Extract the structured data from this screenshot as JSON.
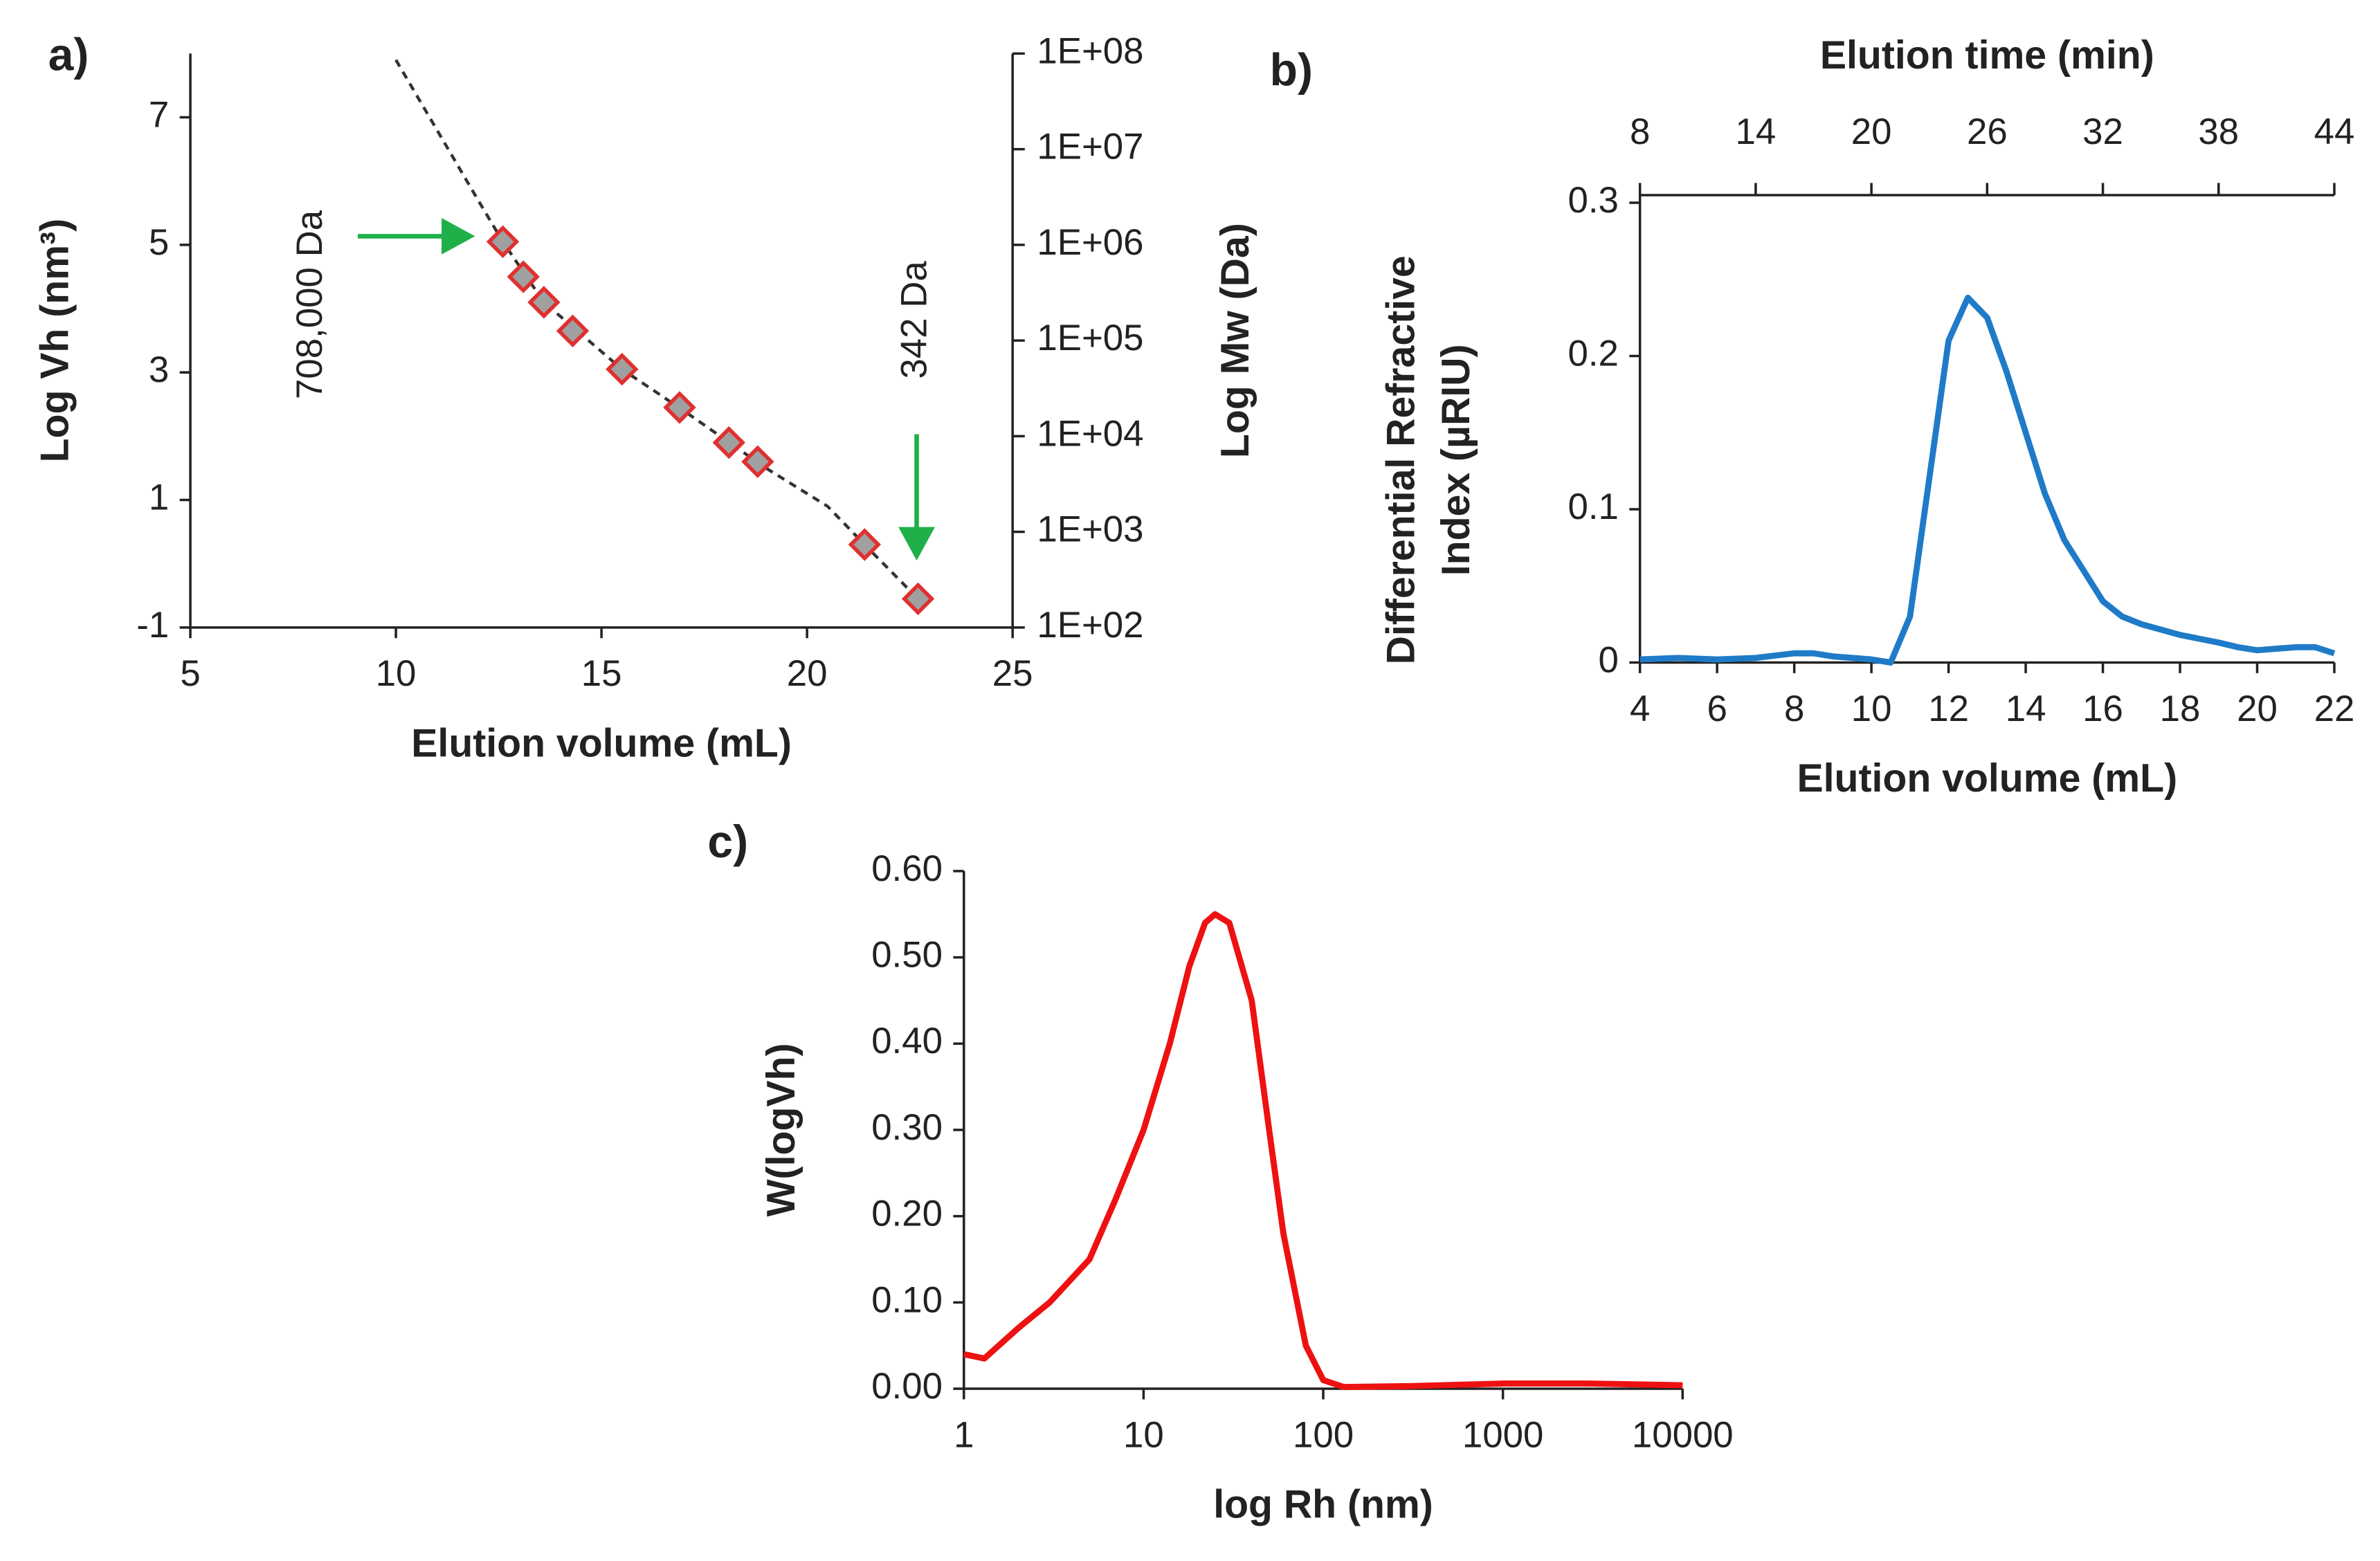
{
  "chart_data": [
    {
      "type": "scatter",
      "panel_label": "a)",
      "xlabel": "Elution volume (mL)",
      "ylabel": "Log Vh (nm³)",
      "y2label": "Log Mw (Da)",
      "xlim": [
        5,
        25
      ],
      "xticks": [
        5,
        10,
        15,
        20,
        25
      ],
      "ylim": [
        -1,
        8
      ],
      "yticks": [
        -1,
        1,
        3,
        5,
        7
      ],
      "y2lim": [
        100,
        100000000
      ],
      "y2_log": true,
      "y2ticks": [
        {
          "value": 100,
          "label": "1E+02"
        },
        {
          "value": 1000,
          "label": "1E+03"
        },
        {
          "value": 10000,
          "label": "1E+04"
        },
        {
          "value": 100000,
          "label": "1E+05"
        },
        {
          "value": 1000000,
          "label": "1E+06"
        },
        {
          "value": 10000000,
          "label": "1E+07"
        },
        {
          "value": 100000000,
          "label": "1E+08"
        }
      ],
      "annotations": [
        "708,000 Da",
        "342 Da"
      ],
      "series": [
        {
          "type": "line",
          "dash": true,
          "color": "#333333",
          "x": [
            10,
            11,
            12,
            12.6,
            13.6,
            15.5,
            17,
            19,
            20.5,
            21.4,
            22.7
          ],
          "values": [
            7.9,
            6.8,
            5.7,
            5.05,
            4.1,
            3.05,
            2.4,
            1.5,
            0.9,
            0.3,
            -0.55
          ]
        },
        {
          "type": "scatter",
          "color": "#e03030",
          "fill": "#a0a0a0",
          "x": [
            12.6,
            13.1,
            13.6,
            14.3,
            15.5,
            16.9,
            18.1,
            18.8,
            21.4,
            22.7
          ],
          "values": [
            5.05,
            4.5,
            4.1,
            3.65,
            3.05,
            2.45,
            1.9,
            1.6,
            0.3,
            -0.55
          ]
        }
      ]
    },
    {
      "type": "line",
      "panel_label": "b)",
      "xlabel": "Elution volume (mL)",
      "ylabel": [
        "Differential Refractive",
        "Index (µRIU)"
      ],
      "x2label": "Elution time (min)",
      "xlim": [
        4,
        22
      ],
      "xticks": [
        4,
        6,
        8,
        10,
        12,
        14,
        16,
        18,
        20,
        22
      ],
      "ylim": [
        0,
        0.3
      ],
      "yticks": [
        0,
        0.1,
        0.2,
        0.3
      ],
      "x2lim": [
        8,
        44
      ],
      "x2ticks": [
        8,
        14,
        20,
        26,
        32,
        38,
        44
      ],
      "series": [
        {
          "color": "#1f7bc8",
          "x": [
            4,
            5,
            6,
            7,
            8,
            8.5,
            9,
            10,
            10.5,
            11,
            11.5,
            12,
            12.5,
            13,
            13.5,
            14,
            14.5,
            15,
            15.5,
            16,
            16.5,
            17,
            18,
            19,
            19.5,
            20,
            21,
            21.5,
            22
          ],
          "values": [
            0.002,
            0.003,
            0.002,
            0.003,
            0.006,
            0.006,
            0.004,
            0.002,
            0.0,
            0.03,
            0.12,
            0.21,
            0.238,
            0.225,
            0.19,
            0.15,
            0.11,
            0.08,
            0.06,
            0.04,
            0.03,
            0.025,
            0.018,
            0.013,
            0.01,
            0.008,
            0.01,
            0.01,
            0.006
          ]
        }
      ]
    },
    {
      "type": "line",
      "panel_label": "c)",
      "xlabel": "log Rh (nm)",
      "ylabel": "W(logVh)",
      "x_log": true,
      "xlim": [
        1,
        10000
      ],
      "xticks": [
        1,
        10,
        100,
        1000,
        10000
      ],
      "ylim": [
        0,
        0.6
      ],
      "yticks": [
        {
          "value": 0,
          "label": "0.00"
        },
        {
          "value": 0.1,
          "label": "0.10"
        },
        {
          "value": 0.2,
          "label": "0.20"
        },
        {
          "value": 0.3,
          "label": "0.30"
        },
        {
          "value": 0.4,
          "label": "0.40"
        },
        {
          "value": 0.5,
          "label": "0.50"
        },
        {
          "value": 0.6,
          "label": "0.60"
        }
      ],
      "series": [
        {
          "color": "#ee1111",
          "x": [
            1,
            1.3,
            2,
            3,
            5,
            7,
            10,
            14,
            18,
            22,
            25,
            30,
            40,
            50,
            60,
            80,
            100,
            130,
            300,
            1000,
            3000,
            10000
          ],
          "values": [
            0.04,
            0.035,
            0.07,
            0.1,
            0.15,
            0.22,
            0.3,
            0.4,
            0.49,
            0.54,
            0.55,
            0.54,
            0.45,
            0.3,
            0.18,
            0.05,
            0.01,
            0.002,
            0.003,
            0.006,
            0.006,
            0.004
          ]
        }
      ]
    }
  ]
}
